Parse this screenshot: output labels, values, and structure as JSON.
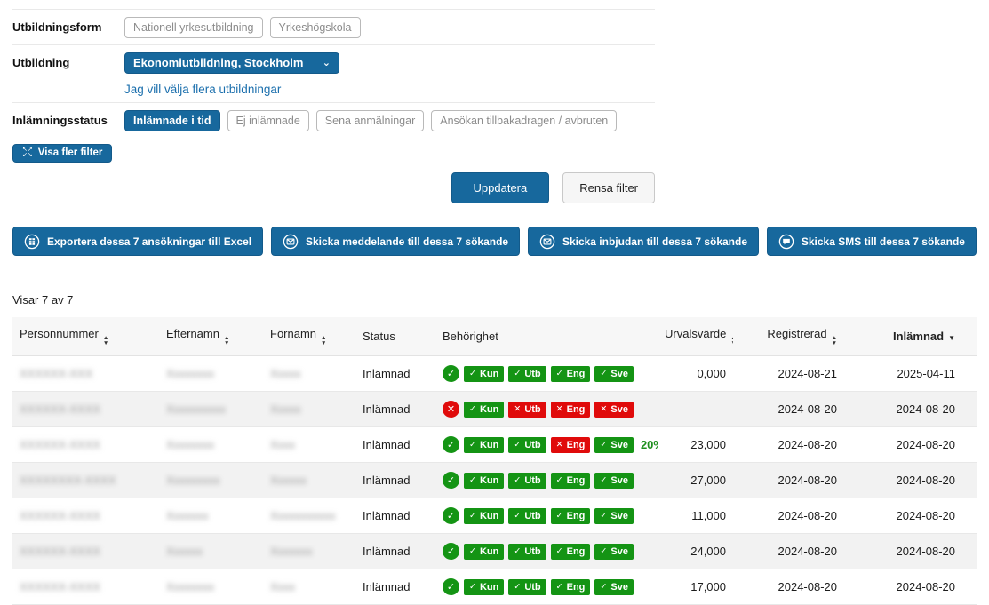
{
  "colors": {
    "primary_blue": "#17689d",
    "link_blue": "#1b6fad",
    "pass_green": "#149414",
    "fail_red": "#e00b0b"
  },
  "icons": {
    "check_glyph": "✓",
    "cross_glyph": "✕",
    "sort_up": "▲",
    "sort_down": "▼",
    "chevron_down": "⌄",
    "expand_top": "↖↗",
    "expand_bottom": "↙↘"
  },
  "filters": {
    "utbildningsform": {
      "label": "Utbildningsform",
      "options": [
        "Nationell yrkesutbildning",
        "Yrkeshögskola"
      ]
    },
    "utbildning": {
      "label": "Utbildning",
      "selected": "Ekonomiutbildning, Stockholm",
      "more_link": "Jag vill välja flera utbildningar"
    },
    "inlamningsstatus": {
      "label": "Inlämningsstatus",
      "options": [
        {
          "label": "Inlämnade i tid",
          "selected": true
        },
        {
          "label": "Ej inlämnade",
          "selected": false
        },
        {
          "label": "Sena anmälningar",
          "selected": false
        },
        {
          "label": "Ansökan tillbakadragen / avbruten",
          "selected": false
        }
      ]
    },
    "show_more_filters": "Visa fler filter",
    "update_button": "Uppdatera",
    "clear_button": "Rensa filter"
  },
  "actions": [
    {
      "label": "Exportera dessa 7 ansökningar till Excel",
      "icon": "excel-export-icon"
    },
    {
      "label": "Skicka meddelande till dessa 7 sökande",
      "icon": "envelope-icon"
    },
    {
      "label": "Skicka inbjudan till dessa 7 sökande",
      "icon": "envelope-icon"
    },
    {
      "label": "Skicka SMS till dessa 7 sökande",
      "icon": "sms-bubble-icon"
    }
  ],
  "results": {
    "summary": "Visar 7 av 7",
    "columns": [
      {
        "label": "Personnummer",
        "sort": "both",
        "align": "left"
      },
      {
        "label": "Efternamn",
        "sort": "both",
        "align": "left"
      },
      {
        "label": "Förnamn",
        "sort": "both",
        "align": "left"
      },
      {
        "label": "Status",
        "sort": null,
        "align": "left"
      },
      {
        "label": "Behörighet",
        "sort": null,
        "align": "left"
      },
      {
        "label": "Urvalsvärde",
        "sort": "both",
        "align": "right"
      },
      {
        "label": "Registrerad",
        "sort": "both",
        "align": "right"
      },
      {
        "label": "Inlämnad",
        "sort": "desc",
        "align": "right",
        "active": true
      }
    ],
    "rows": [
      {
        "personnummer": "XXXXXX-XXX",
        "efternamn": "Xxxxxxxx",
        "fornamn": "Xxxxx",
        "status": "Inlämnad",
        "overall": "pass",
        "badges": [
          {
            "label": "Kun",
            "ok": true
          },
          {
            "label": "Utb",
            "ok": true
          },
          {
            "label": "Eng",
            "ok": true
          },
          {
            "label": "Sve",
            "ok": true
          }
        ],
        "extra": "",
        "urvalsvarde": "0,000",
        "registrerad": "2024-08-21",
        "inlamnad": "2025-04-11"
      },
      {
        "personnummer": "XXXXXX-XXXX",
        "efternamn": "Xxxxxxxxxx",
        "fornamn": "Xxxxx",
        "status": "Inlämnad",
        "overall": "fail",
        "badges": [
          {
            "label": "Kun",
            "ok": true
          },
          {
            "label": "Utb",
            "ok": false
          },
          {
            "label": "Eng",
            "ok": false
          },
          {
            "label": "Sve",
            "ok": false
          }
        ],
        "extra": "",
        "urvalsvarde": "",
        "registrerad": "2024-08-20",
        "inlamnad": "2024-08-20"
      },
      {
        "personnummer": "XXXXXX-XXXX",
        "efternamn": "Xxxxxxxx",
        "fornamn": "Xxxx",
        "status": "Inlämnad",
        "overall": "pass",
        "badges": [
          {
            "label": "Kun",
            "ok": true
          },
          {
            "label": "Utb",
            "ok": true
          },
          {
            "label": "Eng",
            "ok": false
          },
          {
            "label": "Sve",
            "ok": true
          }
        ],
        "extra": "20%",
        "urvalsvarde": "23,000",
        "registrerad": "2024-08-20",
        "inlamnad": "2024-08-20"
      },
      {
        "personnummer": "XXXXXXXX-XXXX",
        "efternamn": "Xxxxxxxxx",
        "fornamn": "Xxxxxx",
        "status": "Inlämnad",
        "overall": "pass",
        "badges": [
          {
            "label": "Kun",
            "ok": true
          },
          {
            "label": "Utb",
            "ok": true
          },
          {
            "label": "Eng",
            "ok": true
          },
          {
            "label": "Sve",
            "ok": true
          }
        ],
        "extra": "",
        "urvalsvarde": "27,000",
        "registrerad": "2024-08-20",
        "inlamnad": "2024-08-20"
      },
      {
        "personnummer": "XXXXXX-XXXX",
        "efternamn": "Xxxxxxx",
        "fornamn": "Xxxxxxxxxxx",
        "status": "Inlämnad",
        "overall": "pass",
        "badges": [
          {
            "label": "Kun",
            "ok": true
          },
          {
            "label": "Utb",
            "ok": true
          },
          {
            "label": "Eng",
            "ok": true
          },
          {
            "label": "Sve",
            "ok": true
          }
        ],
        "extra": "",
        "urvalsvarde": "11,000",
        "registrerad": "2024-08-20",
        "inlamnad": "2024-08-20"
      },
      {
        "personnummer": "XXXXXX-XXXX",
        "efternamn": "Xxxxxx",
        "fornamn": "Xxxxxxx",
        "status": "Inlämnad",
        "overall": "pass",
        "badges": [
          {
            "label": "Kun",
            "ok": true
          },
          {
            "label": "Utb",
            "ok": true
          },
          {
            "label": "Eng",
            "ok": true
          },
          {
            "label": "Sve",
            "ok": true
          }
        ],
        "extra": "",
        "urvalsvarde": "24,000",
        "registrerad": "2024-08-20",
        "inlamnad": "2024-08-20"
      },
      {
        "personnummer": "XXXXXX-XXXX",
        "efternamn": "Xxxxxxxx",
        "fornamn": "Xxxx",
        "status": "Inlämnad",
        "overall": "pass",
        "badges": [
          {
            "label": "Kun",
            "ok": true
          },
          {
            "label": "Utb",
            "ok": true
          },
          {
            "label": "Eng",
            "ok": true
          },
          {
            "label": "Sve",
            "ok": true
          }
        ],
        "extra": "",
        "urvalsvarde": "17,000",
        "registrerad": "2024-08-20",
        "inlamnad": "2024-08-20"
      }
    ]
  }
}
